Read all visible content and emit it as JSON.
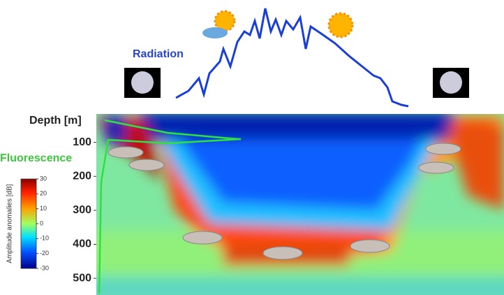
{
  "labels": {
    "radiation": "Radiation",
    "depth": "Depth [m]",
    "fluorescence": "Fluorescence"
  },
  "depth_axis": {
    "lim": [
      0,
      545
    ],
    "ticks": [
      100,
      200,
      300,
      400,
      500
    ]
  },
  "colorbar": {
    "label": "Amplitude anomalies [dB]",
    "lim": [
      -30,
      30
    ],
    "ticks": [
      30,
      20,
      10,
      0,
      -10,
      -20,
      -30
    ]
  }
}
